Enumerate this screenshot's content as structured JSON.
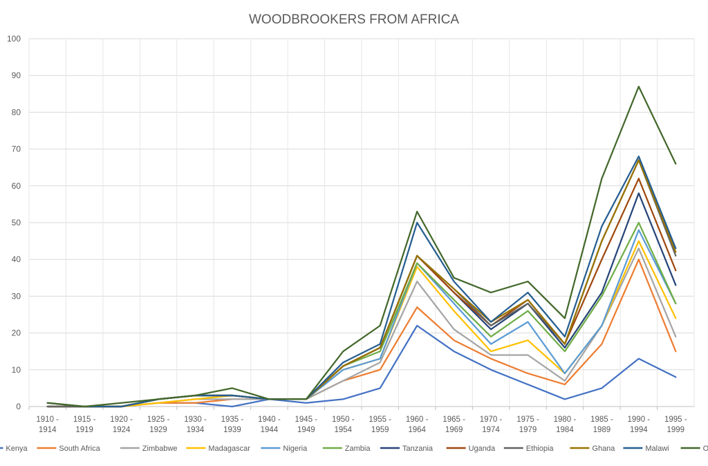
{
  "chart_data": {
    "type": "line",
    "title": "WOODBROOKERS FROM AFRICA",
    "xlabel": "",
    "ylabel": "",
    "ylim": [
      0,
      100
    ],
    "yticks": [
      "0",
      "10",
      "20",
      "30",
      "40",
      "50",
      "60",
      "70",
      "80",
      "90",
      "100"
    ],
    "grid": true,
    "legend_position": "bottom",
    "categories": [
      [
        "1910 -",
        "1914"
      ],
      [
        "1915 -",
        "1919"
      ],
      [
        "1920 -",
        "1924"
      ],
      [
        "1925 -",
        "1929"
      ],
      [
        "1930 -",
        "1934"
      ],
      [
        "1935 -",
        "1939"
      ],
      [
        "1940 -",
        "1944"
      ],
      [
        "1945 -",
        "1949"
      ],
      [
        "1950 -",
        "1954"
      ],
      [
        "1955 -",
        "1959"
      ],
      [
        "1960 -",
        "1964"
      ],
      [
        "1965 -",
        "1969"
      ],
      [
        "1970 -",
        "1974"
      ],
      [
        "1975 -",
        "1979"
      ],
      [
        "1980 -",
        "1984"
      ],
      [
        "1985 -",
        "1989"
      ],
      [
        "1990 -",
        "1994"
      ],
      [
        "1995 -",
        "1999"
      ]
    ],
    "series": [
      {
        "name": "Kenya",
        "color": "#4472C4",
        "values": [
          0,
          0,
          0,
          1,
          1,
          0,
          2,
          1,
          2,
          5,
          22,
          15,
          10,
          6,
          2,
          5,
          13,
          8
        ]
      },
      {
        "name": "South Africa",
        "color": "#ED7D31",
        "values": [
          0,
          0,
          0,
          1,
          1,
          2,
          2,
          2,
          7,
          10,
          27,
          18,
          13,
          9,
          6,
          17,
          40,
          15
        ]
      },
      {
        "name": "Zimbabwe",
        "color": "#A5A5A5",
        "values": [
          0,
          0,
          0,
          1,
          2,
          2,
          2,
          2,
          7,
          12,
          34,
          21,
          14,
          14,
          7,
          22,
          43,
          19
        ]
      },
      {
        "name": "Madagascar",
        "color": "#FFC000",
        "values": [
          0,
          0,
          0,
          1,
          2,
          3,
          2,
          2,
          10,
          13,
          38,
          26,
          15,
          18,
          9,
          22,
          45,
          24
        ]
      },
      {
        "name": "Nigeria",
        "color": "#5B9BD5",
        "values": [
          0,
          0,
          0,
          2,
          3,
          3,
          2,
          2,
          10,
          13,
          39,
          28,
          17,
          23,
          9,
          22,
          48,
          28
        ]
      },
      {
        "name": "Zambia",
        "color": "#70AD47",
        "values": [
          0,
          0,
          0,
          2,
          3,
          3,
          2,
          2,
          11,
          15,
          39,
          29,
          19,
          26,
          15,
          30,
          50,
          28
        ]
      },
      {
        "name": "Tanzania",
        "color": "#264478",
        "values": [
          0,
          0,
          0,
          2,
          3,
          3,
          2,
          2,
          11,
          16,
          41,
          31,
          21,
          28,
          16,
          31,
          58,
          33
        ]
      },
      {
        "name": "Uganda",
        "color": "#9E480E",
        "values": [
          0,
          0,
          0,
          2,
          3,
          3,
          2,
          2,
          11,
          16,
          41,
          31,
          22,
          29,
          17,
          40,
          62,
          37
        ]
      },
      {
        "name": "Ethiopia",
        "color": "#636363",
        "values": [
          0,
          0,
          0,
          2,
          3,
          3,
          2,
          2,
          11,
          16,
          41,
          32,
          22,
          28,
          17,
          45,
          67,
          41
        ]
      },
      {
        "name": "Ghana",
        "color": "#997300",
        "values": [
          1,
          0,
          0,
          2,
          3,
          3,
          2,
          2,
          11,
          16,
          41,
          32,
          23,
          29,
          17,
          45,
          67,
          42
        ]
      },
      {
        "name": "Malawi",
        "color": "#255E91",
        "values": [
          1,
          0,
          0,
          2,
          3,
          3,
          2,
          2,
          12,
          17,
          50,
          34,
          23,
          31,
          19,
          49,
          68,
          43
        ]
      },
      {
        "name": "Other",
        "color": "#43682B",
        "values": [
          1,
          0,
          1,
          2,
          3,
          5,
          2,
          2,
          15,
          22,
          53,
          35,
          31,
          34,
          24,
          62,
          87,
          66
        ]
      }
    ]
  }
}
